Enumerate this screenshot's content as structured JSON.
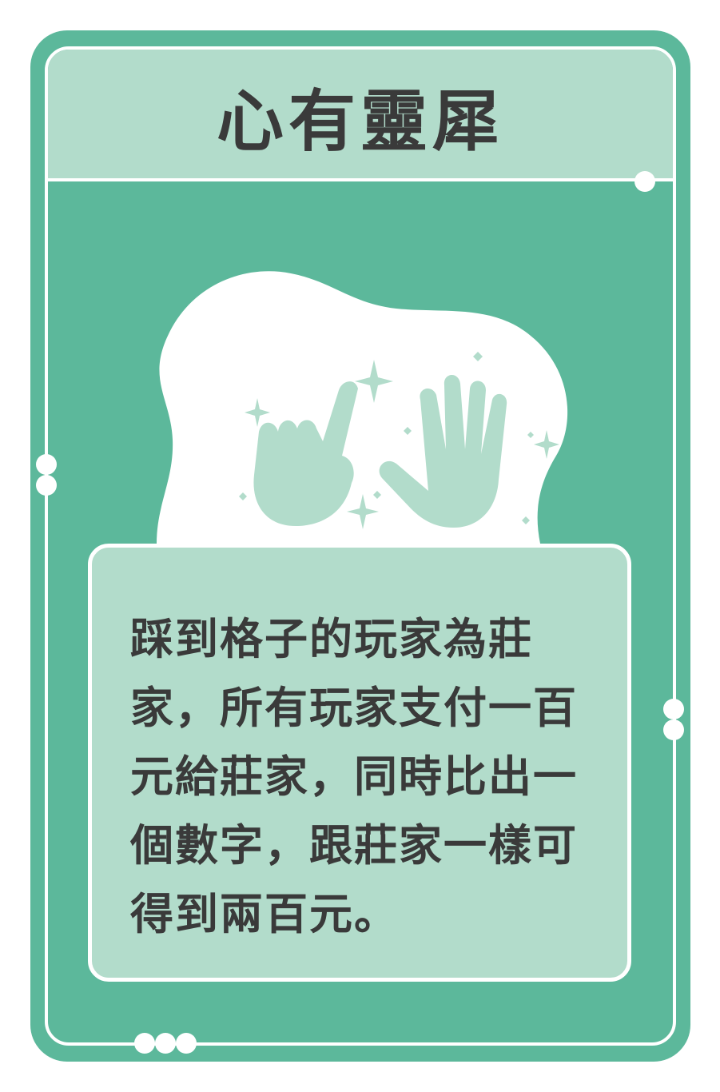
{
  "card": {
    "title": "心有靈犀",
    "description": "踩到格子的玩家為莊家，所有玩家支付一百元給莊家，同時比出一個數字，跟莊家一樣可得到兩百元。",
    "illustration_icon": "two-hands-showing-numbers-icon"
  },
  "colors": {
    "card_green": "#5cb89b",
    "panel_mint": "#b2dccb",
    "text_dark": "#3a3a3a",
    "frame_white": "#ffffff"
  }
}
